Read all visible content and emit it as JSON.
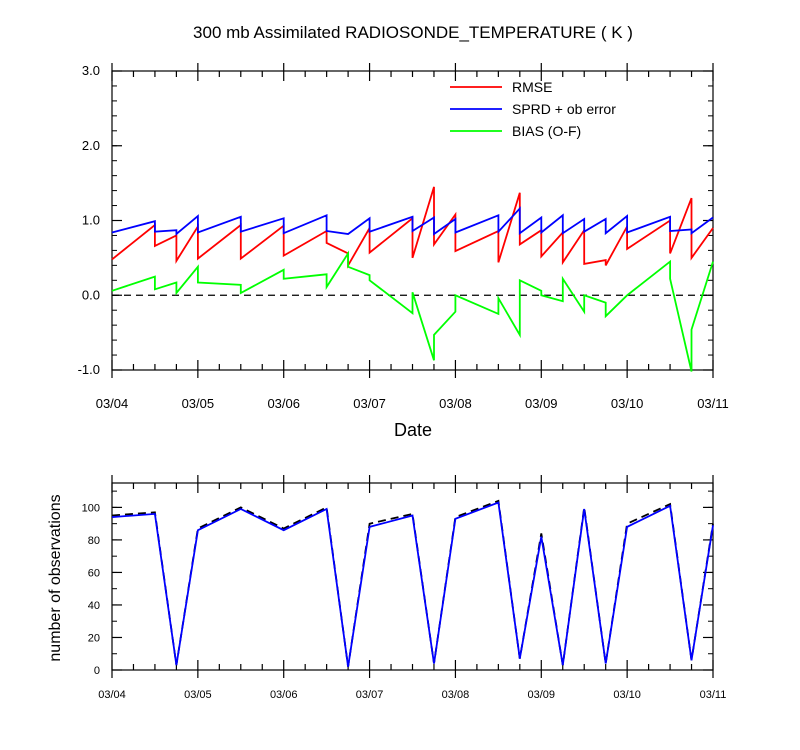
{
  "chart_data": [
    {
      "type": "line",
      "title": "300 mb Assimilated RADIOSONDE_TEMPERATURE ( K )",
      "xlabel": "Date",
      "ylabel": "",
      "x_tick_labels": [
        "03/04",
        "03/05",
        "03/06",
        "03/07",
        "03/08",
        "03/09",
        "03/10",
        "03/11"
      ],
      "x_range_days": [
        0,
        7
      ],
      "ylim": [
        -1.0,
        3.0
      ],
      "y_tick_labels": [
        "-1.0",
        "0.0",
        "1.0",
        "2.0",
        "3.0"
      ],
      "y_tick_values": [
        -1,
        0,
        1,
        2,
        3
      ],
      "legend_position": "top-right",
      "reference_line": 0,
      "series": [
        {
          "name": "RMSE",
          "color": "#ff0000",
          "x": [
            0,
            0.5,
            0.5,
            0.75,
            0.75,
            1.0,
            1.0,
            1.5,
            1.5,
            2.0,
            2.0,
            2.5,
            2.5,
            2.75,
            2.75,
            3.0,
            3.0,
            3.5,
            3.5,
            3.75,
            3.75,
            4.0,
            4.0,
            4.5,
            4.5,
            4.75,
            4.75,
            5.0,
            5.0,
            5.25,
            5.25,
            5.5,
            5.5,
            5.75,
            5.75,
            6.0,
            6.0,
            6.5,
            6.5,
            6.75,
            6.75,
            7.0
          ],
          "y": [
            0.48,
            0.94,
            0.66,
            0.8,
            0.46,
            0.92,
            0.49,
            0.94,
            0.49,
            0.93,
            0.53,
            0.86,
            0.7,
            0.56,
            0.4,
            0.9,
            0.57,
            1.03,
            0.5,
            1.45,
            0.68,
            1.08,
            0.59,
            0.86,
            0.44,
            1.37,
            0.68,
            0.87,
            0.52,
            0.84,
            0.44,
            0.87,
            0.42,
            0.47,
            0.4,
            0.92,
            0.62,
            1.0,
            0.56,
            1.3,
            0.5,
            0.9
          ]
        },
        {
          "name": "SPRD + ob error",
          "color": "#0000ff",
          "x": [
            0,
            0.5,
            0.5,
            0.75,
            0.75,
            1.0,
            1.0,
            1.5,
            1.5,
            2.0,
            2.0,
            2.5,
            2.5,
            2.75,
            2.75,
            3.0,
            3.0,
            3.5,
            3.5,
            3.75,
            3.75,
            4.0,
            4.0,
            4.5,
            4.5,
            4.75,
            4.75,
            5.0,
            5.0,
            5.25,
            5.25,
            5.5,
            5.5,
            5.75,
            5.75,
            6.0,
            6.0,
            6.5,
            6.5,
            6.75,
            6.75,
            7.0
          ],
          "y": [
            0.84,
            0.99,
            0.85,
            0.87,
            0.82,
            1.06,
            0.84,
            1.05,
            0.85,
            1.03,
            0.83,
            1.07,
            0.86,
            0.82,
            0.82,
            1.03,
            0.85,
            1.05,
            0.86,
            1.04,
            0.82,
            1.02,
            0.84,
            1.07,
            0.85,
            1.16,
            0.83,
            1.04,
            0.84,
            1.07,
            0.83,
            1.02,
            0.85,
            1.02,
            0.83,
            1.06,
            0.84,
            1.05,
            0.86,
            0.88,
            0.83,
            1.04
          ]
        },
        {
          "name": "BIAS (O-F)",
          "color": "#00ff00",
          "x": [
            0,
            0.5,
            0.5,
            0.75,
            0.75,
            1.0,
            1.0,
            1.5,
            1.5,
            2.0,
            2.0,
            2.5,
            2.5,
            2.75,
            2.75,
            3.0,
            3.0,
            3.5,
            3.5,
            3.75,
            3.75,
            4.0,
            4.0,
            4.5,
            4.5,
            4.75,
            4.75,
            5.0,
            5.0,
            5.25,
            5.25,
            5.5,
            5.5,
            5.75,
            5.75,
            6.0,
            6.0,
            6.5,
            6.5,
            6.75,
            6.75,
            7.0
          ],
          "y": [
            0.06,
            0.25,
            0.08,
            0.17,
            0.03,
            0.38,
            0.17,
            0.14,
            0.03,
            0.34,
            0.22,
            0.28,
            0.11,
            0.56,
            0.38,
            0.27,
            0.2,
            -0.24,
            0.04,
            -0.87,
            -0.53,
            -0.22,
            0.0,
            -0.25,
            -0.04,
            -0.53,
            0.2,
            0.06,
            0.0,
            -0.08,
            0.22,
            -0.22,
            0.0,
            -0.1,
            -0.28,
            0.0,
            0.0,
            0.45,
            0.22,
            -1.02,
            -0.46,
            0.45
          ]
        }
      ]
    },
    {
      "type": "line",
      "title": "",
      "xlabel": "",
      "ylabel": "number of observations",
      "x_tick_labels": [
        "03/04",
        "03/05",
        "03/06",
        "03/07",
        "03/08",
        "03/09",
        "03/10",
        "03/11"
      ],
      "x_range_days": [
        0,
        7
      ],
      "ylim": [
        0,
        115
      ],
      "y_tick_labels": [
        "0",
        "20",
        "40",
        "60",
        "80",
        "100"
      ],
      "y_tick_values": [
        0,
        20,
        40,
        60,
        80,
        100
      ],
      "series": [
        {
          "name": "observations (dashed)",
          "color": "#000000",
          "x": [
            0,
            0.5,
            0.75,
            1.0,
            1.5,
            2.0,
            2.5,
            2.75,
            3.0,
            3.5,
            3.75,
            4.0,
            4.5,
            4.75,
            5.0,
            5.25,
            5.5,
            5.75,
            6.0,
            6.5,
            6.75,
            7.0
          ],
          "y": [
            95,
            97,
            3,
            87,
            100,
            87,
            100,
            2,
            90,
            96,
            4,
            94,
            104,
            7,
            84,
            3,
            100,
            4,
            90,
            102,
            6,
            90
          ]
        },
        {
          "name": "observations (solid)",
          "color": "#0000ff",
          "x": [
            0,
            0.5,
            0.75,
            1.0,
            1.5,
            2.0,
            2.5,
            2.75,
            3.0,
            3.5,
            3.75,
            4.0,
            4.5,
            4.75,
            5.0,
            5.25,
            5.5,
            5.75,
            6.0,
            6.5,
            6.75,
            7.0
          ],
          "y": [
            94,
            96,
            3,
            86,
            99,
            86,
            99,
            2,
            88,
            95,
            4,
            93,
            103,
            7,
            82,
            3,
            99,
            4,
            88,
            101,
            6,
            89
          ]
        }
      ]
    }
  ]
}
